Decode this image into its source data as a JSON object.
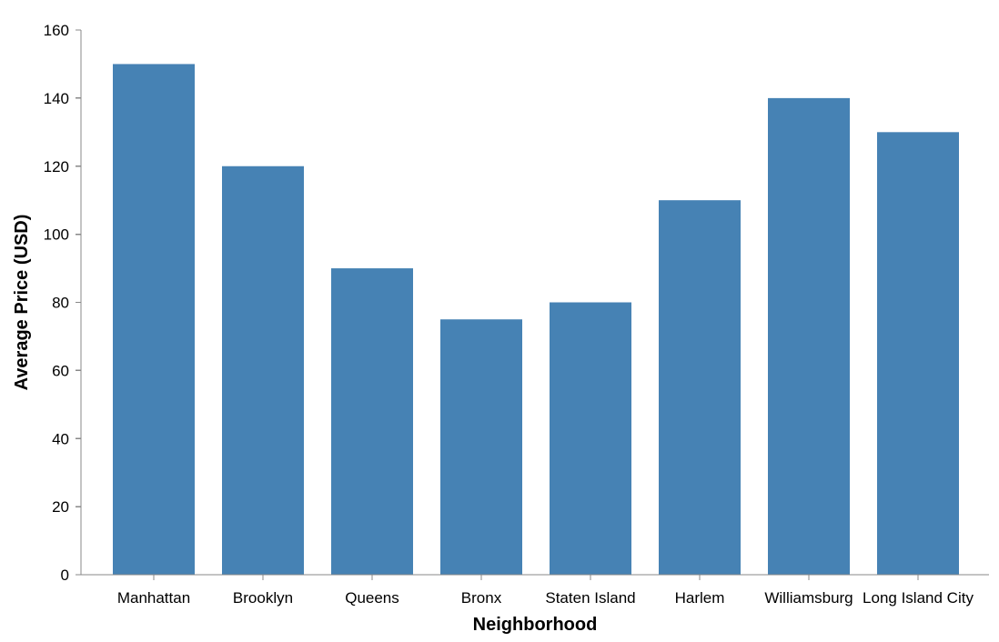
{
  "chart_data": {
    "type": "bar",
    "categories": [
      "Manhattan",
      "Brooklyn",
      "Queens",
      "Bronx",
      "Staten Island",
      "Harlem",
      "Williamsburg",
      "Long Island City"
    ],
    "values": [
      150,
      120,
      90,
      75,
      80,
      110,
      140,
      130
    ],
    "xlabel": "Neighborhood",
    "ylabel": "Average Price (USD)",
    "ylim": [
      0,
      160
    ],
    "yticks": [
      0,
      20,
      40,
      60,
      80,
      100,
      120,
      140,
      160
    ],
    "grid": false,
    "bar_color": "#4682b4",
    "axis_color": "#888888"
  }
}
